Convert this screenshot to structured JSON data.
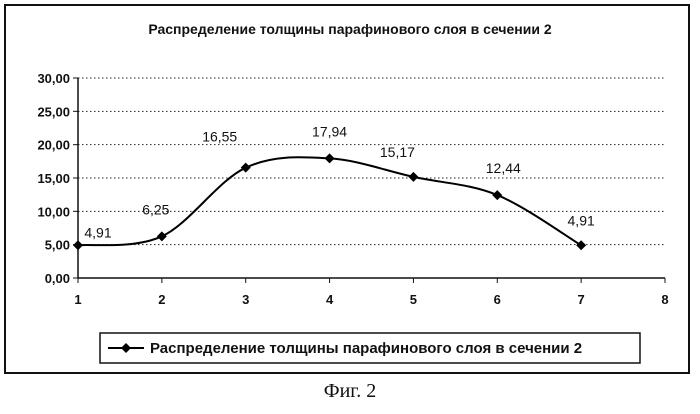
{
  "chart_data": {
    "type": "line",
    "title": "Распределение толщины парафинового слоя в сечении 2",
    "xlabel": "",
    "ylabel": "",
    "x_ticks": [
      "1",
      "2",
      "3",
      "4",
      "5",
      "6",
      "7",
      "8"
    ],
    "y_ticks": [
      "0,00",
      "5,00",
      "10,00",
      "15,00",
      "20,00",
      "25,00",
      "30,00"
    ],
    "xlim": [
      1,
      8
    ],
    "ylim": [
      0,
      30
    ],
    "grid": "horizontal-dotted",
    "legend_position": "bottom",
    "series": [
      {
        "name": "Распределение толщины парафинового слоя в сечении 2",
        "x": [
          1,
          2,
          3,
          4,
          5,
          6,
          7
        ],
        "y": [
          4.91,
          6.25,
          16.55,
          17.94,
          15.17,
          12.44,
          4.91
        ],
        "labels": [
          "4,91",
          "6,25",
          "16,55",
          "17,94",
          "15,17",
          "12,44",
          "4,91"
        ]
      }
    ],
    "line_color": "#000000",
    "marker": "diamond"
  },
  "caption": "Фиг. 2"
}
